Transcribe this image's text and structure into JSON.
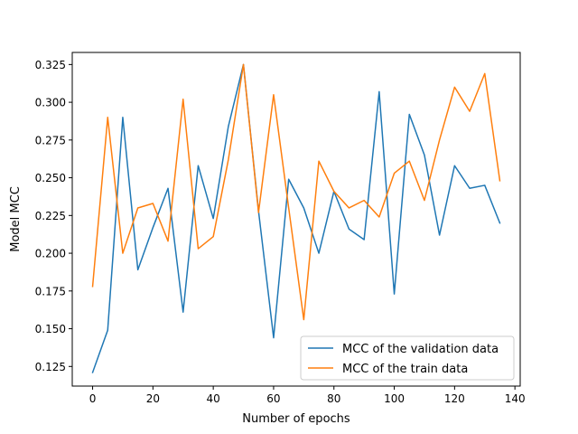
{
  "chart_data": {
    "type": "line",
    "title": "",
    "xlabel": "Number of epochs",
    "ylabel": "Model MCC",
    "xlim": [
      -6.75,
      141.75
    ],
    "ylim": [
      0.112,
      0.333
    ],
    "xticks": [
      0,
      20,
      40,
      60,
      80,
      100,
      120,
      140
    ],
    "xtick_labels": [
      "0",
      "20",
      "40",
      "60",
      "80",
      "100",
      "120",
      "140"
    ],
    "yticks": [
      0.125,
      0.15,
      0.175,
      0.2,
      0.225,
      0.25,
      0.275,
      0.3,
      0.325
    ],
    "ytick_labels": [
      "0.125",
      "0.150",
      "0.175",
      "0.200",
      "0.225",
      "0.250",
      "0.275",
      "0.300",
      "0.325"
    ],
    "grid": false,
    "legend_position": "lower-right",
    "x": [
      0,
      5,
      10,
      15,
      20,
      25,
      30,
      35,
      40,
      45,
      50,
      55,
      60,
      65,
      70,
      75,
      80,
      85,
      90,
      95,
      100,
      105,
      110,
      115,
      120,
      125,
      130,
      135
    ],
    "series": [
      {
        "name": "MCC of the validation data",
        "color": "#1f77b4",
        "values": [
          0.121,
          0.149,
          0.29,
          0.189,
          0.217,
          0.243,
          0.161,
          0.258,
          0.223,
          0.284,
          0.325,
          0.228,
          0.144,
          0.249,
          0.23,
          0.2,
          0.241,
          0.216,
          0.209,
          0.307,
          0.173,
          0.292,
          0.265,
          0.212,
          0.258,
          0.243,
          0.245,
          0.22
        ]
      },
      {
        "name": "MCC of the train data",
        "color": "#ff7f0e",
        "values": [
          0.178,
          0.29,
          0.2,
          0.23,
          0.233,
          0.208,
          0.302,
          0.203,
          0.211,
          0.262,
          0.325,
          0.227,
          0.305,
          0.23,
          0.156,
          0.261,
          0.241,
          0.23,
          0.235,
          0.224,
          0.253,
          0.261,
          0.235,
          0.275,
          0.31,
          0.294,
          0.319,
          0.248
        ]
      }
    ]
  }
}
